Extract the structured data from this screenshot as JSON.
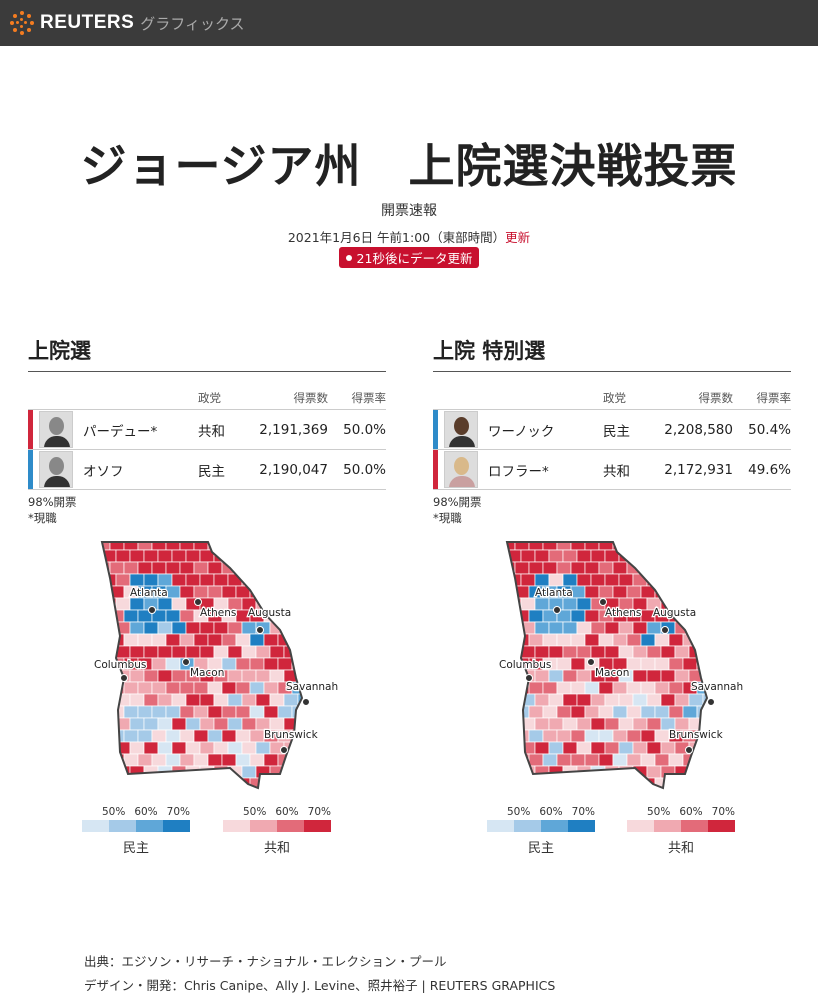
{
  "header": {
    "brand": "REUTERS",
    "section": "グラフィックス"
  },
  "title": "ジョージア州　上院選決戦投票",
  "subtitle": "開票速報",
  "timestamp": {
    "text": "2021年1月6日 午前1:00（東部時間）",
    "update_link": "更新"
  },
  "countdown": "21秒後にデータ更新",
  "table_headers": {
    "party": "政党",
    "votes": "得票数",
    "pct": "得票率"
  },
  "races": [
    {
      "title": "上院選",
      "candidates": [
        {
          "name": "パーデュー*",
          "party": "共和",
          "votes": "2,191,369",
          "pct": "50.0%",
          "color": "#d0263c"
        },
        {
          "name": "オソフ",
          "party": "民主",
          "votes": "2,190,047",
          "pct": "50.0%",
          "color": "#2e8bc9"
        }
      ],
      "reporting": "98%開票",
      "incumbent_note": "*現職"
    },
    {
      "title": "上院 特別選",
      "candidates": [
        {
          "name": "ワーノック",
          "party": "民主",
          "votes": "2,208,580",
          "pct": "50.4%",
          "color": "#2e8bc9"
        },
        {
          "name": "ロフラー*",
          "party": "共和",
          "votes": "2,172,931",
          "pct": "49.6%",
          "color": "#d0263c"
        }
      ],
      "reporting": "98%開票",
      "incumbent_note": "*現職"
    }
  ],
  "map": {
    "cities": [
      "Atlanta",
      "Athens",
      "Augusta",
      "Columbus",
      "Macon",
      "Savannah",
      "Brunswick"
    ]
  },
  "legend": {
    "thresholds": [
      "50%",
      "60%",
      "70%"
    ],
    "dem_label": "民主",
    "rep_label": "共和",
    "dem_colors": [
      "#d6e6f3",
      "#a5cae8",
      "#5fa7d8",
      "#1f7fc2"
    ],
    "rep_colors": [
      "#f7d9dc",
      "#f0a9b1",
      "#e36b79",
      "#d0263c"
    ]
  },
  "footer": {
    "source": "出典：エジソン・リサーチ・ナショナル・エレクション・プール",
    "credits": "デザイン・開発：Chris Canipe、Ally J. Levine、照井裕子 | REUTERS GRAPHICS"
  }
}
